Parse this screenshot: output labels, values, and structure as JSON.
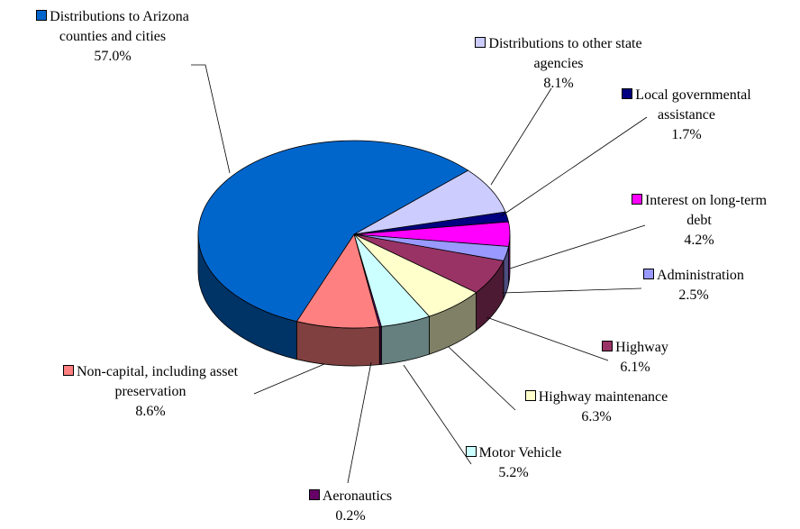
{
  "chart_data": {
    "type": "pie",
    "categories": [
      "Distributions to other state agencies",
      "Local governmental assistance",
      "Interest on long-term debt",
      "Administration",
      "Highway",
      "Highway maintenance",
      "Motor Vehicle",
      "Aeronautics",
      "Non-capital, including asset preservation",
      "Distributions to Arizona counties and cities"
    ],
    "values": [
      8.1,
      1.7,
      4.2,
      2.5,
      6.1,
      6.3,
      5.2,
      0.2,
      8.6,
      57.0
    ],
    "value_labels": [
      "8.1%",
      "1.7%",
      "4.2%",
      "2.5%",
      "6.1%",
      "6.3%",
      "5.2%",
      "0.2%",
      "8.6%",
      "57.0%"
    ],
    "colors": [
      "#ccccff",
      "#000080",
      "#ff00ff",
      "#9999ff",
      "#993366",
      "#ffffcc",
      "#ccffff",
      "#660066",
      "#ff8080",
      "#0066cc"
    ],
    "legend": true
  }
}
